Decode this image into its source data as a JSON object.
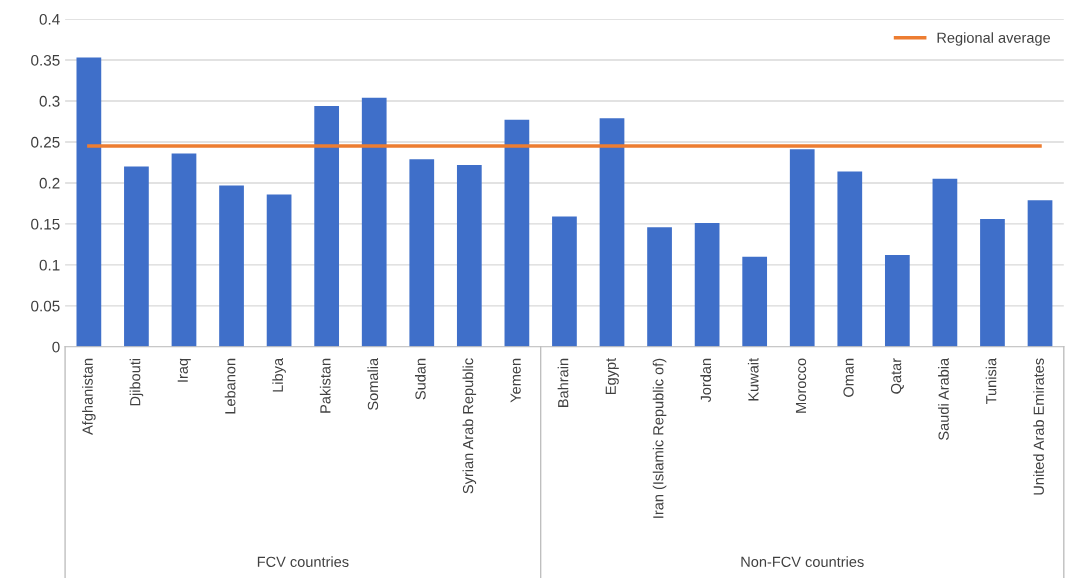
{
  "chart_data": {
    "type": "bar",
    "categories": [
      "Afghanistan",
      "Djibouti",
      "Iraq",
      "Lebanon",
      "Libya",
      "Pakistan",
      "Somalia",
      "Sudan",
      "Syrian Arab Republic",
      "Yemen",
      "Bahrain",
      "Egypt",
      "Iran (Islamic Republic of)",
      "Jordan",
      "Kuwait",
      "Morocco",
      "Oman",
      "Qatar",
      "Saudi Arabia",
      "Tunisia",
      "United Arab Emirates"
    ],
    "series": [
      {
        "color": "#3f6fc9",
        "values": [
          0.353,
          0.22,
          0.236,
          0.197,
          0.186,
          0.294,
          0.304,
          0.229,
          0.222,
          0.277,
          0.159,
          0.279,
          0.146,
          0.151,
          0.11,
          0.241,
          0.214,
          0.112,
          0.205,
          0.156,
          0.179
        ]
      },
      {
        "type": "line",
        "name": "Regional average",
        "color": "#ed7d31",
        "values": [
          0.245,
          0.245,
          0.245,
          0.245,
          0.245,
          0.245,
          0.245,
          0.245,
          0.245,
          0.245,
          0.245,
          0.245,
          0.245,
          0.245,
          0.245,
          0.245,
          0.245,
          0.245,
          0.245,
          0.245,
          0.245
        ]
      }
    ],
    "ylim": [
      0,
      0.4
    ],
    "yticks": [
      0,
      0.05,
      0.1,
      0.15,
      0.2,
      0.25,
      0.3,
      0.35,
      0.4
    ],
    "grid": "y",
    "legend": "top right",
    "annotations": [
      "FCV countries",
      "Non-FCV countries"
    ]
  }
}
